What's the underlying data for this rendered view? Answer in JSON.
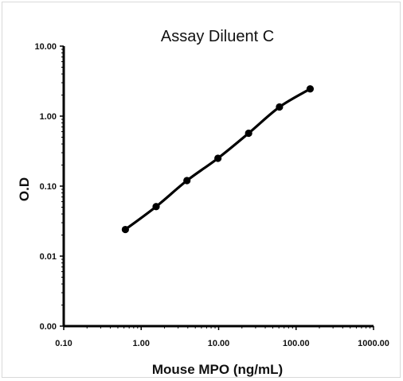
{
  "chart_data": {
    "type": "line",
    "title": "Assay Diluent C",
    "xlabel": "Mouse MPO (ng/mL)",
    "ylabel": "O.D",
    "x_scale": "log",
    "y_scale": "log",
    "xlim": [
      0.1,
      1000
    ],
    "ylim": [
      0.001,
      10
    ],
    "x_ticks": [
      0.1,
      1,
      10,
      100,
      1000
    ],
    "x_tick_labels": [
      "0.10",
      "1.00",
      "10.00",
      "100.00",
      "1000.00"
    ],
    "y_ticks": [
      0.001,
      0.01,
      0.1,
      1,
      10
    ],
    "y_tick_labels": [
      "0.00",
      "0.01",
      "0.10",
      "1.00",
      "10.00"
    ],
    "grid": false,
    "legend": false,
    "series": [
      {
        "x": [
          0.625,
          1.56,
          3.9,
          9.8,
          24.4,
          61,
          152
        ],
        "y": [
          0.024,
          0.051,
          0.12,
          0.25,
          0.57,
          1.35,
          2.45
        ],
        "color": "#000000",
        "marker": "circle"
      }
    ]
  }
}
